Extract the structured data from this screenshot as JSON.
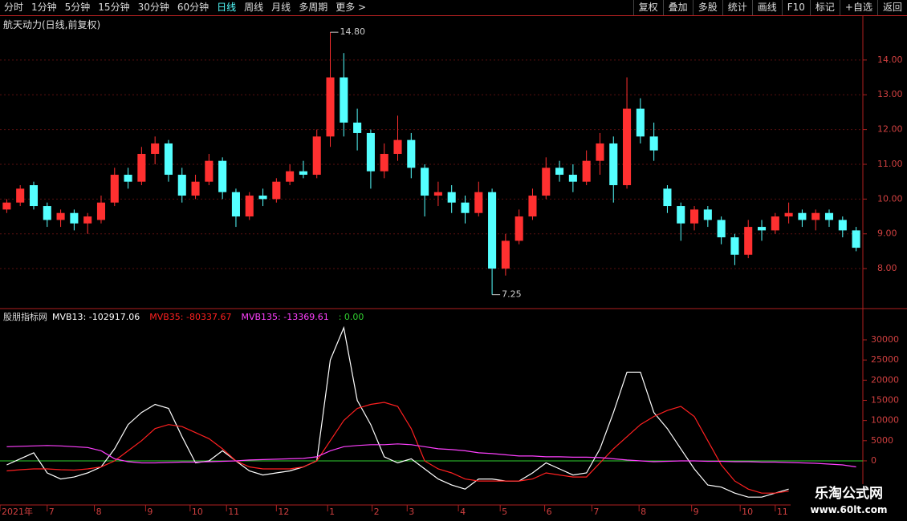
{
  "toolbar": {
    "periods": [
      "分时",
      "1分钟",
      "5分钟",
      "15分钟",
      "30分钟",
      "60分钟",
      "日线",
      "周线",
      "月线",
      "多周期"
    ],
    "more": "更多 >",
    "active": 6,
    "actions": [
      "复权",
      "叠加",
      "多股",
      "统计",
      "画线",
      "F10",
      "标记",
      "+自选",
      "返回"
    ]
  },
  "chart_data": [
    {
      "type": "candlestick",
      "title": "航天动力(日线,前复权)",
      "open": [
        9.7,
        9.9,
        10.4,
        9.8,
        9.4,
        9.6,
        9.3,
        9.4,
        9.9,
        10.7,
        10.5,
        11.3,
        11.6,
        10.7,
        10.1,
        10.5,
        11.1,
        10.2,
        9.5,
        10.1,
        10.0,
        10.5,
        10.8,
        10.7,
        11.8,
        13.5,
        12.2,
        11.9,
        10.8,
        11.3,
        11.7,
        10.9,
        10.1,
        10.2,
        9.9,
        9.6,
        10.2,
        8.0,
        8.8,
        9.5,
        10.1,
        10.9,
        10.7,
        10.5,
        11.1,
        11.6,
        10.4,
        12.6,
        11.8,
        10.3,
        9.8,
        9.3,
        9.7,
        9.4,
        8.9,
        8.4,
        9.2,
        9.1,
        9.5,
        9.6,
        9.4,
        9.6,
        9.4,
        9.1
      ],
      "high": [
        10.0,
        10.4,
        10.5,
        9.9,
        9.7,
        9.7,
        9.6,
        10.1,
        10.9,
        10.9,
        11.5,
        11.8,
        11.7,
        10.9,
        10.7,
        11.3,
        11.2,
        10.3,
        10.2,
        10.3,
        10.6,
        11.0,
        11.1,
        12.0,
        14.8,
        14.2,
        12.6,
        12.0,
        11.6,
        12.4,
        11.9,
        11.0,
        10.5,
        10.4,
        10.1,
        10.5,
        10.3,
        9.0,
        9.7,
        10.3,
        11.2,
        11.1,
        11.0,
        11.4,
        11.9,
        11.8,
        13.5,
        12.9,
        12.2,
        10.4,
        9.9,
        9.8,
        9.8,
        9.5,
        9.0,
        9.4,
        9.4,
        9.6,
        9.9,
        9.7,
        9.7,
        9.7,
        9.5,
        9.2
      ],
      "low": [
        9.6,
        9.8,
        9.7,
        9.2,
        9.2,
        9.1,
        9.0,
        9.3,
        9.8,
        10.3,
        10.4,
        11.0,
        10.5,
        9.9,
        10.0,
        10.4,
        10.0,
        9.2,
        9.4,
        9.8,
        9.9,
        10.4,
        10.6,
        10.6,
        11.5,
        11.8,
        11.4,
        10.3,
        10.6,
        11.1,
        10.6,
        9.5,
        9.8,
        9.6,
        9.3,
        9.5,
        7.25,
        7.8,
        8.7,
        9.4,
        10.0,
        10.5,
        10.2,
        10.4,
        10.7,
        9.9,
        10.3,
        11.6,
        11.1,
        9.6,
        8.8,
        9.1,
        9.2,
        8.7,
        8.1,
        8.3,
        8.8,
        9.0,
        9.3,
        9.2,
        9.1,
        9.2,
        8.9,
        8.5
      ],
      "close": [
        9.9,
        10.3,
        9.8,
        9.4,
        9.6,
        9.3,
        9.5,
        9.9,
        10.7,
        10.5,
        11.3,
        11.6,
        10.7,
        10.1,
        10.5,
        11.1,
        10.2,
        9.5,
        10.1,
        10.0,
        10.5,
        10.8,
        10.7,
        11.8,
        13.5,
        12.2,
        11.9,
        10.8,
        11.3,
        11.7,
        10.9,
        10.1,
        10.2,
        9.9,
        9.6,
        10.2,
        8.0,
        8.8,
        9.5,
        10.1,
        10.9,
        10.7,
        10.5,
        11.1,
        11.6,
        10.4,
        12.6,
        11.8,
        11.4,
        9.8,
        9.3,
        9.7,
        9.4,
        8.9,
        8.4,
        9.2,
        9.1,
        9.5,
        9.6,
        9.4,
        9.6,
        9.4,
        9.1,
        8.6
      ],
      "up_color": "#ff3030",
      "down_color": "#54ffff",
      "ylim": [
        6.85,
        14.85
      ],
      "yticks": [
        {
          "value": 8,
          "label": "8.00"
        },
        {
          "value": 9,
          "label": "9.00"
        },
        {
          "value": 10,
          "label": "10.00"
        },
        {
          "value": 11,
          "label": "11.00"
        },
        {
          "value": 12,
          "label": "12.00"
        },
        {
          "value": 13,
          "label": "13.00"
        },
        {
          "value": 14,
          "label": "14.00"
        }
      ],
      "grid": true,
      "annotations": [
        {
          "x": 24,
          "value": 14.8,
          "label": "14.80"
        },
        {
          "x": 36,
          "value": 7.25,
          "label": "7.25"
        }
      ],
      "xticks": [
        {
          "value": 0,
          "label": "2021年"
        },
        {
          "value": 3.5,
          "label": "7"
        },
        {
          "value": 7,
          "label": "8"
        },
        {
          "value": 10.8,
          "label": "9"
        },
        {
          "value": 14.1,
          "label": "10"
        },
        {
          "value": 16.8,
          "label": "11"
        },
        {
          "value": 20.5,
          "label": "12"
        },
        {
          "value": 24.3,
          "label": "1"
        },
        {
          "value": 27.6,
          "label": "2"
        },
        {
          "value": 30.2,
          "label": "3"
        },
        {
          "value": 34,
          "label": "4"
        },
        {
          "value": 37.1,
          "label": "5"
        },
        {
          "value": 40.4,
          "label": "6"
        },
        {
          "value": 43.9,
          "label": "7"
        },
        {
          "value": 47.4,
          "label": "8"
        },
        {
          "value": 51.3,
          "label": "9"
        },
        {
          "value": 54.9,
          "label": "10"
        },
        {
          "value": 57.5,
          "label": "11"
        }
      ]
    },
    {
      "type": "line",
      "title": "股朋指标网",
      "series": [
        {
          "name": "MVB13",
          "color": "#ffffff",
          "current": {
            "value": -102917.06,
            "label": ": -102917.06"
          },
          "values": [
            -1000,
            500,
            2000,
            -3000,
            -4500,
            -4000,
            -3000,
            -1500,
            3000,
            9000,
            12000,
            14000,
            13000,
            6000,
            -500,
            0,
            2500,
            0,
            -2500,
            -3500,
            -3000,
            -2500,
            -1500,
            0,
            25000,
            33000,
            15000,
            9000,
            1000,
            -500,
            500,
            -2000,
            -4500,
            -6000,
            -7000,
            -4500,
            -4500,
            -5000,
            -5000,
            -3000,
            -500,
            -2000,
            -3500,
            -3000,
            3000,
            12000,
            22000,
            22000,
            12000,
            8000,
            3000,
            -2000,
            -6000,
            -6500,
            -8000,
            -9000,
            -9000,
            -8000,
            -7000,
            null,
            null,
            null,
            null,
            null
          ]
        },
        {
          "name": "MVB35",
          "color": "#ff2020",
          "current": {
            "value": -80337.67,
            "label": ": -80337.67"
          },
          "values": [
            -2500,
            -2200,
            -2000,
            -2000,
            -2200,
            -2300,
            -2000,
            -1500,
            0,
            2500,
            5000,
            8000,
            9000,
            8500,
            7000,
            5500,
            3000,
            0,
            -1500,
            -2000,
            -2000,
            -2000,
            -1500,
            0,
            5000,
            10000,
            13000,
            14000,
            14500,
            13500,
            8000,
            0,
            -2000,
            -3000,
            -4500,
            -5000,
            -5000,
            -5000,
            -5000,
            -4500,
            -3000,
            -3500,
            -4000,
            -4000,
            -500,
            3000,
            6000,
            9000,
            11000,
            12500,
            13500,
            11000,
            5000,
            -1000,
            -5000,
            -7000,
            -8000,
            -8000,
            -7500,
            null,
            null,
            null,
            null,
            null
          ]
        },
        {
          "name": "MVB135",
          "color": "#ff40ff",
          "current": {
            "value": -13369.61,
            "label": ": -13369.61"
          },
          "values": [
            3500,
            3600,
            3700,
            3800,
            3700,
            3500,
            3300,
            2500,
            500,
            -200,
            -500,
            -500,
            -400,
            -300,
            -300,
            -200,
            -100,
            0,
            200,
            300,
            400,
            500,
            600,
            1000,
            2500,
            3500,
            3800,
            4000,
            4000,
            4200,
            4000,
            3500,
            3000,
            2800,
            2500,
            2000,
            1800,
            1500,
            1200,
            1200,
            1000,
            1000,
            900,
            900,
            800,
            500,
            200,
            0,
            -200,
            -100,
            0,
            0,
            -100,
            -100,
            -200,
            -200,
            -300,
            -300,
            -400,
            -500,
            -600,
            -800,
            -1000,
            -1500
          ]
        }
      ],
      "level": {
        "value": 0,
        "label": ": 0.00",
        "color": "#30d030"
      },
      "ylim": [
        -10940,
        34770
      ],
      "yticks": [
        0,
        5000,
        10000,
        15000,
        20000,
        25000,
        30000
      ]
    }
  ],
  "watermark": {
    "title": "乐淘公式网",
    "url": "www.60lt.com"
  }
}
